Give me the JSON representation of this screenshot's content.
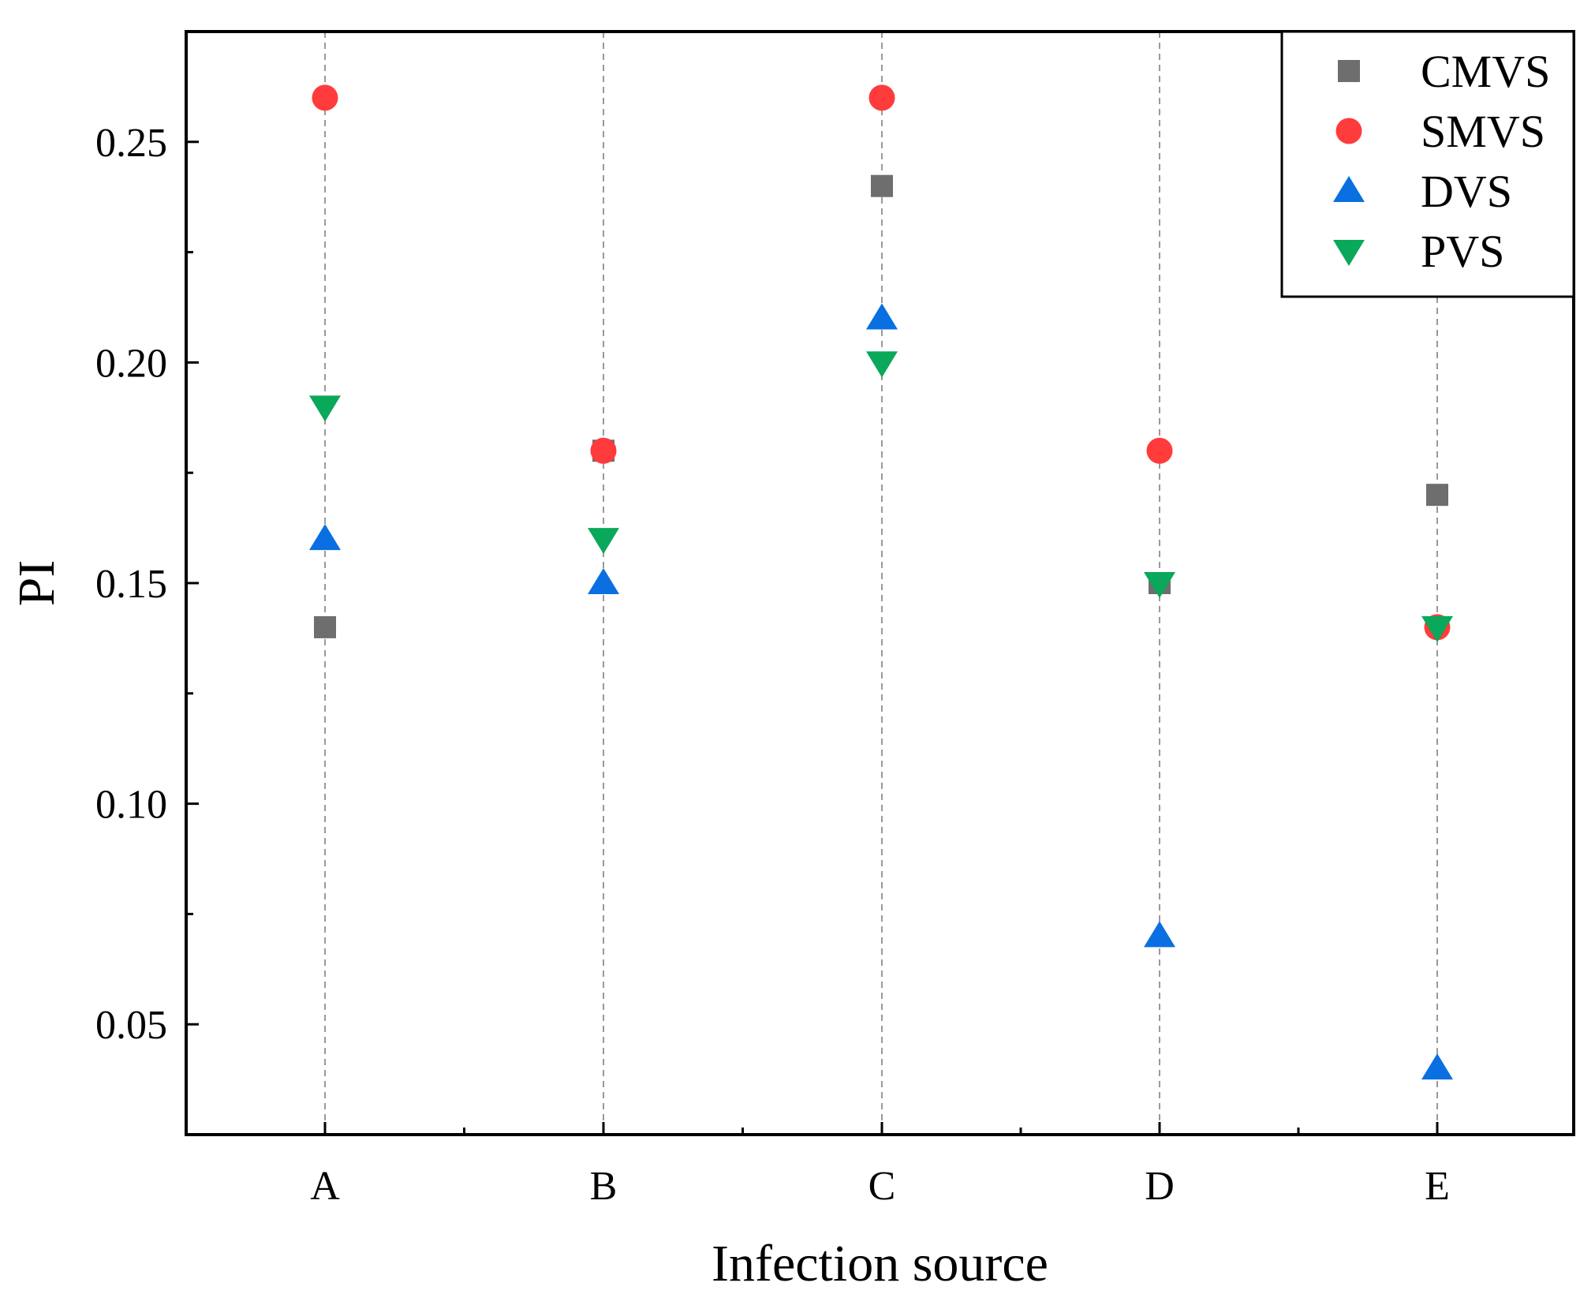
{
  "chart_data": {
    "type": "scatter",
    "title": "",
    "xlabel": "Infection source",
    "ylabel": "PI",
    "categories": [
      "A",
      "B",
      "C",
      "D",
      "E"
    ],
    "ylim": [
      0.025,
      0.275
    ],
    "yticks": [
      0.05,
      0.1,
      0.15,
      0.2,
      0.25
    ],
    "ytick_labels": [
      "0.05",
      "0.10",
      "0.15",
      "0.20",
      "0.25"
    ],
    "grid": "vertical dashed lines at each category",
    "legend_position": "top-right",
    "series": [
      {
        "name": "CMVS",
        "marker": "square",
        "color": "#6e6e6e",
        "values": [
          0.14,
          0.18,
          0.24,
          0.15,
          0.17
        ]
      },
      {
        "name": "SMVS",
        "marker": "circle",
        "color": "#ff3b3b",
        "values": [
          0.26,
          0.18,
          0.26,
          0.18,
          0.14
        ]
      },
      {
        "name": "DVS",
        "marker": "triangle-up",
        "color": "#0a6fe0",
        "values": [
          0.16,
          0.15,
          0.21,
          0.07,
          0.04
        ]
      },
      {
        "name": "PVS",
        "marker": "triangle-down",
        "color": "#0aa85a",
        "values": [
          0.19,
          0.16,
          0.2,
          0.15,
          0.14
        ]
      }
    ]
  }
}
